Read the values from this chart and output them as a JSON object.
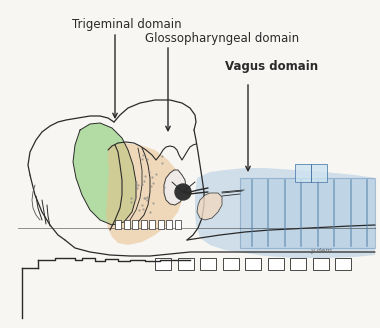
{
  "background_color": "#f8f6f3",
  "labels": {
    "trigeminal": "Trigeminal domain",
    "glossopharyngeal": "Glossopharyngeal domain",
    "vagus": "Vagus domain"
  },
  "green_color": "#8ecf7a",
  "peach_color": "#e8c08a",
  "blue_color": "#a8c8e0",
  "line_color": "#2a2a2a",
  "label_fontsize": 8.5,
  "fig_width": 3.8,
  "fig_height": 3.28,
  "dpi": 100
}
